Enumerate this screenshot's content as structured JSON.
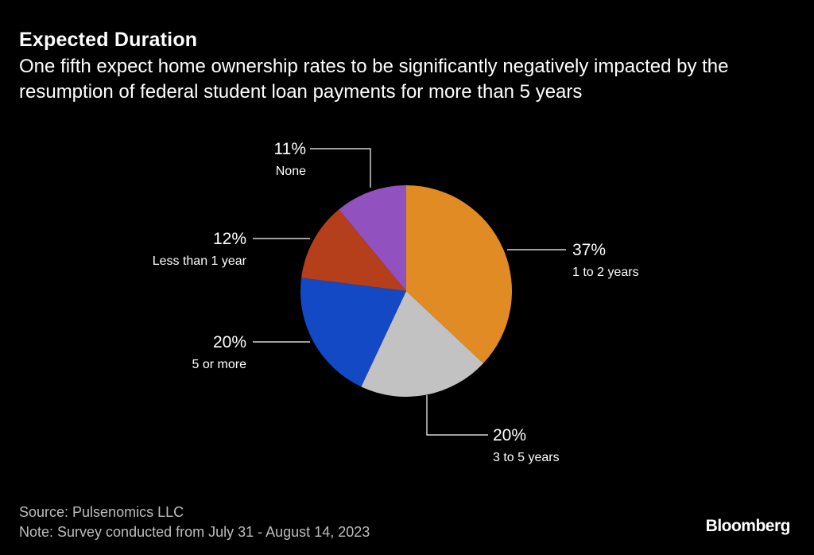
{
  "header": {
    "title": "Expected Duration",
    "subtitle": "One fifth expect home ownership rates to be significantly negatively impacted by the resumption of federal student loan payments for more than 5 years"
  },
  "chart_data": {
    "type": "pie",
    "slices": [
      {
        "label": "1 to 2 years",
        "value": 37,
        "value_label": "37%",
        "color": "#e08b24"
      },
      {
        "label": "3 to 5 years",
        "value": 20,
        "value_label": "20%",
        "color": "#c2c2c2"
      },
      {
        "label": "5 or more",
        "value": 20,
        "value_label": "20%",
        "color": "#1349c4"
      },
      {
        "label": "Less than 1 year",
        "value": 12,
        "value_label": "12%",
        "color": "#b53e1b"
      },
      {
        "label": "None",
        "value": 11,
        "value_label": "11%",
        "color": "#9152bf"
      }
    ]
  },
  "footer": {
    "source": "Source: Pulsenomics LLC",
    "note": "Note: Survey conducted from July 31 - August 14, 2023"
  },
  "brand": {
    "name": "Bloomberg"
  }
}
